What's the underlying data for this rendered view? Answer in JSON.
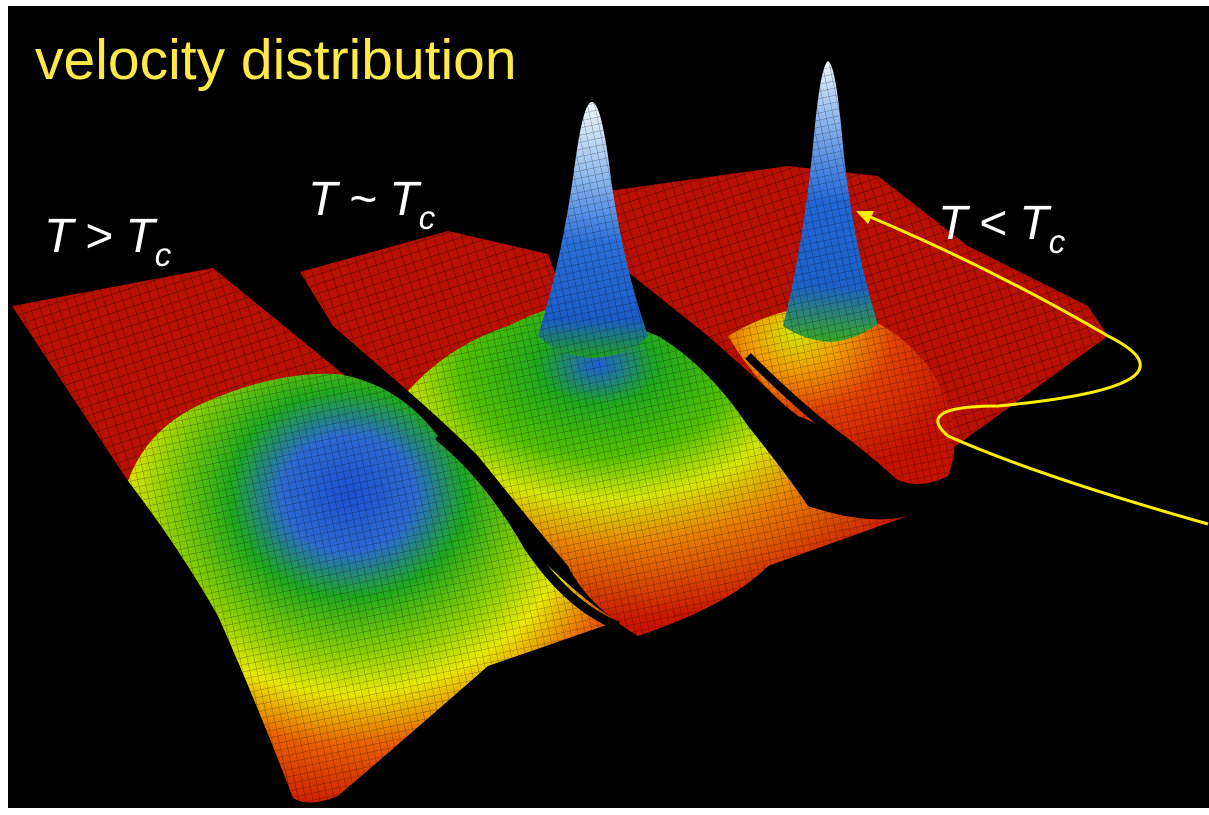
{
  "slide": {
    "title": "velocity distribution"
  },
  "labels": {
    "high": {
      "variable": "T",
      "operator": ">",
      "reference": "T",
      "subscript": "c"
    },
    "critical": {
      "variable": "T",
      "operator": "~",
      "reference": "T",
      "subscript": "c"
    },
    "low": {
      "variable": "T",
      "operator": "<",
      "reference": "T",
      "subscript": "c"
    }
  },
  "colors": {
    "background": "#000000",
    "title": "#ffe84a",
    "label": "#ffffff",
    "arrow": "#ffee00",
    "surface_low": "#c81400",
    "surface_mid": "#d6e600",
    "surface_green": "#1fa81f",
    "surface_high": "#1f5fd6",
    "surface_peak": "#e8f0ff"
  }
}
